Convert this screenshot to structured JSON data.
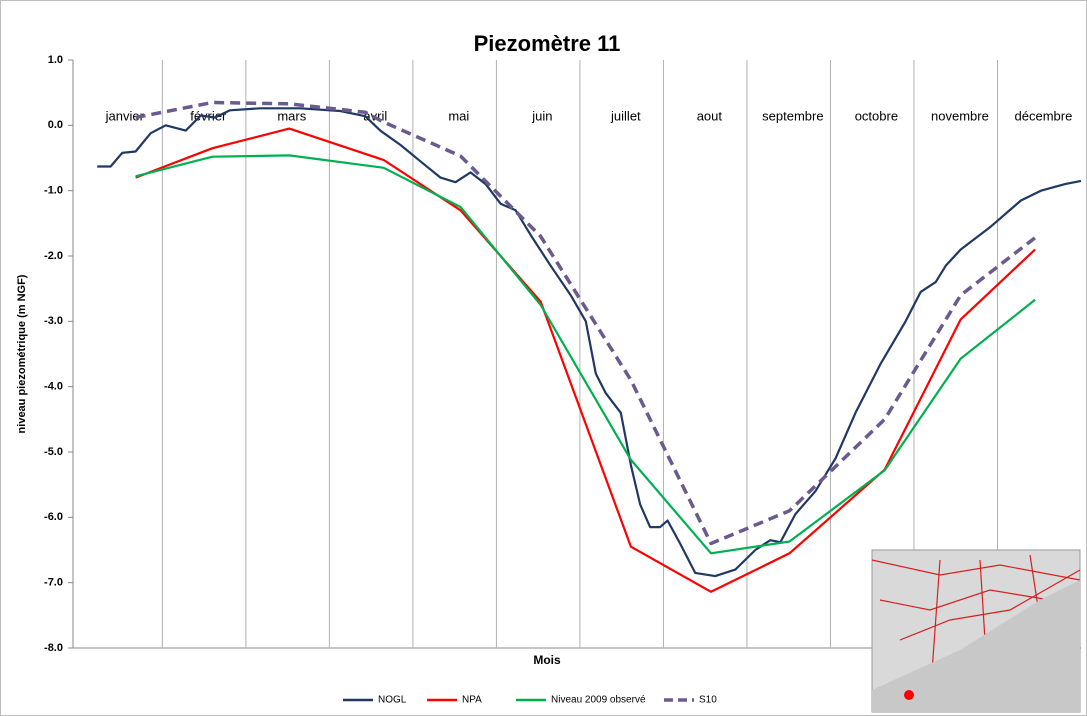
{
  "chart_data": {
    "type": "line",
    "title": "Piezomètre 11",
    "x_label": "Mois",
    "y_label": "niveau piezométrique (m NGF)",
    "month_labels": [
      "janvier",
      "février",
      "mars",
      "avril",
      "mai",
      "juin",
      "juillet",
      "aout",
      "septembre",
      "octobre",
      "novembre",
      "décembre"
    ],
    "xlim": [
      -0.07,
      12
    ],
    "xticks": [
      1,
      2,
      3,
      4,
      5,
      6,
      7,
      8,
      9,
      10,
      11
    ],
    "ylim": [
      -8,
      1
    ],
    "yticks": [
      {
        "value": 1,
        "label": "1.0"
      },
      {
        "value": 0,
        "label": "0.0"
      },
      {
        "value": -1,
        "label": "-1.0"
      },
      {
        "value": -2,
        "label": "-2.0"
      },
      {
        "value": -3,
        "label": "-3.0"
      },
      {
        "value": -4,
        "label": "-4.0"
      },
      {
        "value": -5,
        "label": "-5.0"
      },
      {
        "value": -6,
        "label": "-6.0"
      },
      {
        "value": -7,
        "label": "-7.0"
      },
      {
        "value": -8,
        "label": "-8.0"
      }
    ],
    "grid": true,
    "legend": "bottom",
    "series": [
      {
        "name": "NOGL",
        "color": "#1f3864",
        "x": [
          0.22,
          0.38,
          0.52,
          0.68,
          0.86,
          1.04,
          1.28,
          1.46,
          1.63,
          1.81,
          2.17,
          2.65,
          3.13,
          3.43,
          3.61,
          3.85,
          4.09,
          4.33,
          4.51,
          4.69,
          4.87,
          5.05,
          5.23,
          5.41,
          5.65,
          5.89,
          6.07,
          6.19,
          6.31,
          6.49,
          6.61,
          6.72,
          6.84,
          6.96,
          7.05,
          7.2,
          7.38,
          7.62,
          7.86,
          8.1,
          8.28,
          8.4,
          8.58,
          8.82,
          9.06,
          9.3,
          9.6,
          9.9,
          10.08,
          10.26,
          10.38,
          10.56,
          10.92,
          11.28,
          11.52,
          11.81,
          12.0
        ],
        "values": [
          -0.63,
          -0.63,
          -0.42,
          -0.4,
          -0.12,
          0.0,
          -0.08,
          0.15,
          0.12,
          0.23,
          0.26,
          0.26,
          0.22,
          0.14,
          -0.08,
          -0.3,
          -0.55,
          -0.8,
          -0.87,
          -0.72,
          -0.9,
          -1.2,
          -1.3,
          -1.68,
          -2.15,
          -2.6,
          -3.0,
          -3.8,
          -4.1,
          -4.4,
          -5.2,
          -5.8,
          -6.15,
          -6.15,
          -6.05,
          -6.4,
          -6.85,
          -6.9,
          -6.8,
          -6.5,
          -6.35,
          -6.38,
          -5.95,
          -5.6,
          -5.1,
          -4.4,
          -3.65,
          -3.0,
          -2.55,
          -2.4,
          -2.15,
          -1.9,
          -1.55,
          -1.15,
          -1.0,
          -0.9,
          -0.85
        ]
      },
      {
        "name": "NPA",
        "color": "#ff0000",
        "x": [
          0.68,
          1.6,
          2.52,
          3.65,
          4.57,
          5.53,
          6.61,
          7.57,
          8.51,
          9.65,
          10.56,
          11.45
        ],
        "values": [
          -0.8,
          -0.35,
          -0.05,
          -0.53,
          -1.3,
          -2.7,
          -6.45,
          -7.14,
          -6.55,
          -5.27,
          -2.97,
          -1.9
        ]
      },
      {
        "name": "Niveau 2009 observé",
        "color": "#00b050",
        "x": [
          0.68,
          1.6,
          2.52,
          3.65,
          4.57,
          5.53,
          6.61,
          7.57,
          8.51,
          9.65,
          10.56,
          11.45
        ],
        "values": [
          -0.78,
          -0.48,
          -0.46,
          -0.65,
          -1.25,
          -2.75,
          -5.12,
          -6.55,
          -6.37,
          -5.28,
          -3.57,
          -2.67
        ]
      },
      {
        "name": "S10",
        "color": "#6a5a8e",
        "line_style": "dashed",
        "x": [
          0.68,
          1.6,
          2.52,
          3.43,
          3.65,
          4.57,
          5.53,
          6.61,
          7.57,
          8.51,
          9.65,
          10.56,
          11.45
        ],
        "values": [
          0.12,
          0.35,
          0.33,
          0.2,
          0.05,
          -0.47,
          -1.7,
          -3.9,
          -6.4,
          -5.9,
          -4.5,
          -2.6,
          -1.72
        ]
      }
    ]
  }
}
